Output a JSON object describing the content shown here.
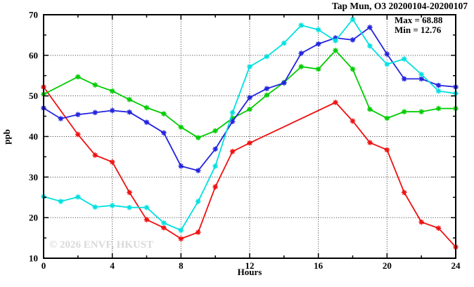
{
  "chart_data": {
    "type": "line",
    "title": "Tap Mun, O3 20200104-20200107",
    "xlabel": "Hours",
    "ylabel": "ppb",
    "xlim": [
      0,
      24
    ],
    "ylim": [
      10,
      70
    ],
    "x_major_ticks": [
      0,
      4,
      8,
      12,
      16,
      20,
      24
    ],
    "x_minor_ticks": [
      2,
      6,
      10,
      14,
      18,
      22
    ],
    "y_major_ticks": [
      10,
      20,
      30,
      40,
      50,
      60,
      70
    ],
    "y_minor_ticks": [
      15,
      25,
      35,
      45,
      55,
      65
    ],
    "grid": {
      "x": [
        4,
        8,
        12,
        16,
        20
      ],
      "y": [
        20,
        30,
        40,
        50,
        60
      ]
    },
    "legend": "none",
    "marker": "asterisk",
    "annotations": {
      "max_label": "Max = 68.88",
      "min_label": "Min = 12.76"
    },
    "watermark": "© 2026 ENVF, HKUST",
    "x": [
      0,
      1,
      2,
      3,
      4,
      5,
      6,
      7,
      8,
      9,
      10,
      11,
      12,
      13,
      14,
      15,
      16,
      17,
      18,
      19,
      20,
      21,
      22,
      23,
      24
    ],
    "series": [
      {
        "name": "red-line",
        "color": "#ee1111",
        "values": [
          52.2,
          null,
          40.5,
          35.4,
          33.7,
          26.2,
          19.5,
          17.5,
          14.8,
          16.4,
          27.6,
          36.3,
          38.4,
          null,
          null,
          null,
          null,
          48.4,
          43.8,
          38.5,
          36.7,
          26.2,
          18.9,
          17.4,
          12.76
        ]
      },
      {
        "name": "green-line",
        "color": "#00cc00",
        "values": [
          50.4,
          null,
          54.7,
          52.7,
          51.2,
          49.1,
          47.1,
          45.6,
          42.3,
          39.7,
          41.4,
          44.5,
          46.7,
          50.2,
          53.3,
          57.2,
          56.6,
          61.2,
          56.6,
          46.7,
          44.5,
          46.1,
          46.1,
          46.9,
          46.9
        ]
      },
      {
        "name": "blue-line",
        "color": "#2323dd",
        "values": [
          47.0,
          44.4,
          45.4,
          45.9,
          46.4,
          46.0,
          43.5,
          40.9,
          32.7,
          31.6,
          36.9,
          43.7,
          49.6,
          51.8,
          53.2,
          60.5,
          62.8,
          64.3,
          63.8,
          66.9,
          60.3,
          54.2,
          54.2,
          52.6,
          52.2
        ]
      },
      {
        "name": "cyan-line",
        "color": "#00e0e0",
        "values": [
          25.2,
          24.0,
          25.1,
          22.6,
          23.0,
          22.5,
          22.5,
          18.7,
          16.9,
          24.0,
          32.7,
          45.9,
          57.2,
          59.7,
          63.0,
          67.4,
          66.3,
          63.6,
          68.88,
          62.3,
          57.8,
          59.1,
          55.3,
          51.2,
          50.6
        ]
      }
    ]
  }
}
